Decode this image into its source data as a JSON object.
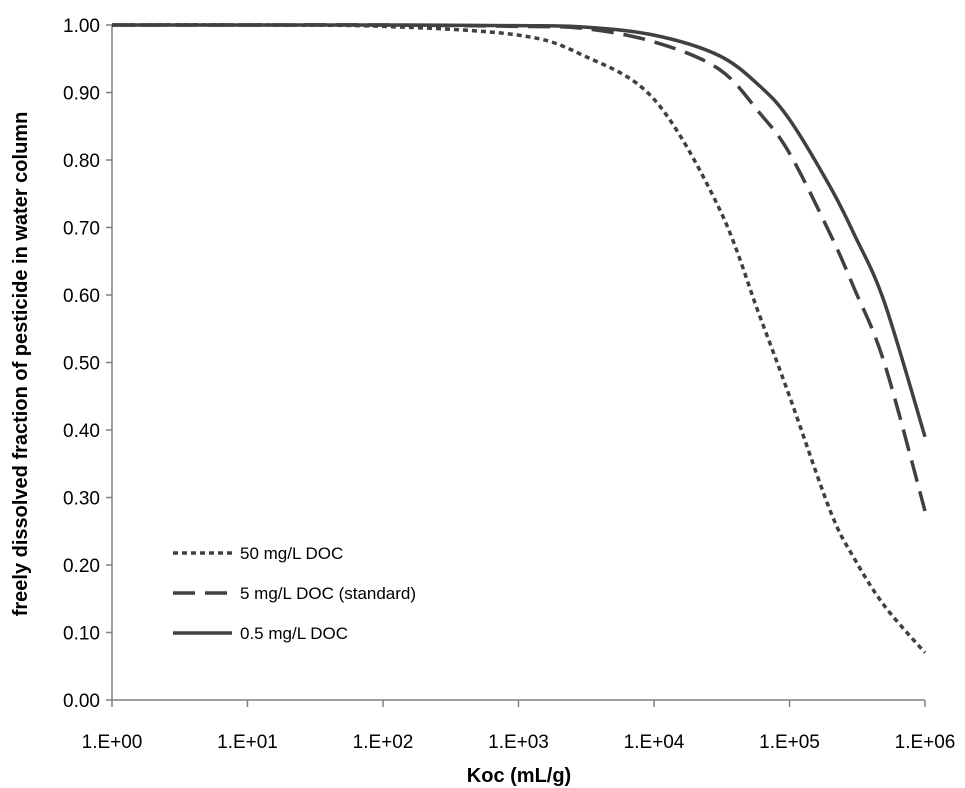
{
  "chart_data": {
    "type": "line",
    "title": "",
    "xlabel": "Koc (mL/g)",
    "ylabel": "freely dissolved fraction of pesticide in water column",
    "x_scale": "log",
    "xlim": [
      1,
      1000000
    ],
    "ylim": [
      0,
      1
    ],
    "x_ticks": [
      1,
      10,
      100,
      1000,
      10000,
      100000,
      1000000
    ],
    "x_tick_labels": [
      "1.E+00",
      "1.E+01",
      "1.E+02",
      "1.E+03",
      "1.E+04",
      "1.E+05",
      "1.E+06"
    ],
    "y_ticks": [
      0,
      0.1,
      0.2,
      0.3,
      0.4,
      0.5,
      0.6,
      0.7,
      0.8,
      0.9,
      1.0
    ],
    "y_tick_labels": [
      "0.00",
      "0.10",
      "0.20",
      "0.30",
      "0.40",
      "0.50",
      "0.60",
      "0.70",
      "0.80",
      "0.90",
      "1.00"
    ],
    "grid": false,
    "legend_position": "bottom-left",
    "x": [
      1,
      10,
      100,
      1000,
      3000,
      10000,
      30000,
      60000,
      100000,
      200000,
      300000,
      500000,
      1000000
    ],
    "series": [
      {
        "name": "50 mg/L DOC",
        "style": "dotted",
        "color": "#404040",
        "values": [
          1.0,
          1.0,
          0.998,
          0.985,
          0.955,
          0.89,
          0.73,
          0.57,
          0.45,
          0.28,
          0.21,
          0.14,
          0.07
        ]
      },
      {
        "name": "5 mg/L DOC (standard)",
        "style": "dashed",
        "color": "#404040",
        "values": [
          1.0,
          1.0,
          1.0,
          0.998,
          0.995,
          0.975,
          0.935,
          0.87,
          0.81,
          0.69,
          0.61,
          0.5,
          0.28
        ]
      },
      {
        "name": "0.5 mg/L DOC",
        "style": "solid",
        "color": "#404040",
        "values": [
          1.0,
          1.0,
          1.0,
          0.999,
          0.997,
          0.985,
          0.955,
          0.91,
          0.86,
          0.76,
          0.69,
          0.59,
          0.39
        ]
      }
    ]
  }
}
